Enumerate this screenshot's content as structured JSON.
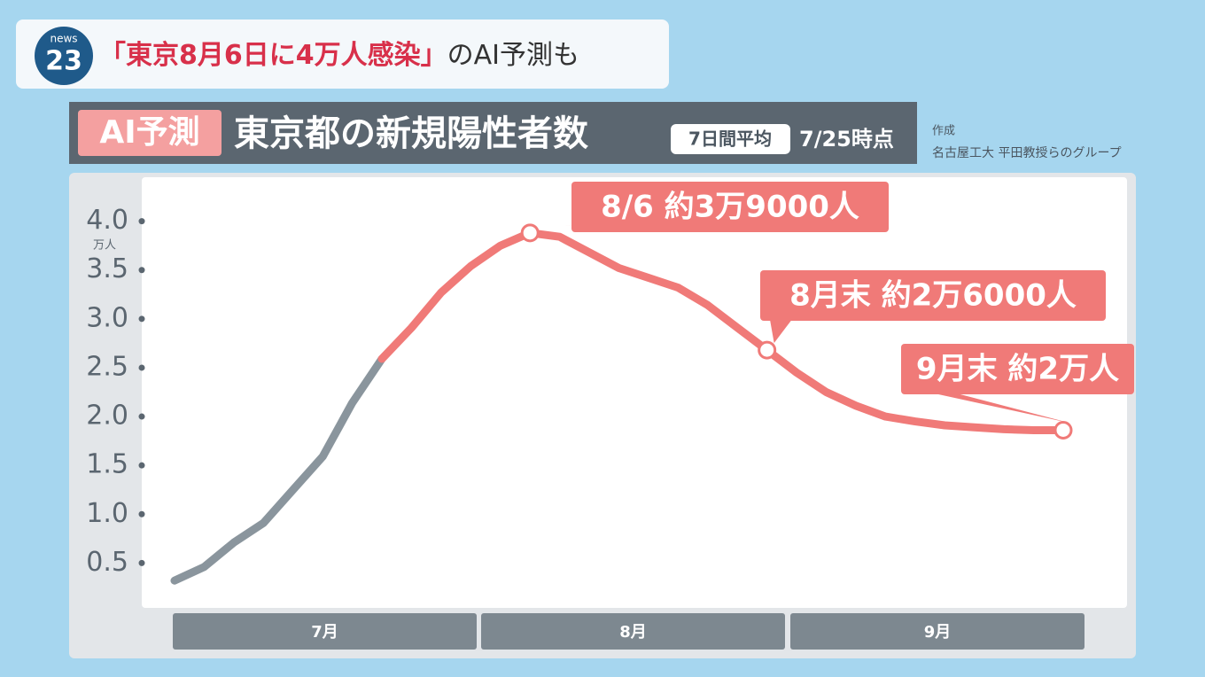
{
  "header": {
    "logo_top": "news",
    "logo_number": "23",
    "title_highlight": "「東京8月6日に4万人感染」",
    "title_rest": "のAI予測も"
  },
  "chart_data": {
    "type": "line",
    "badge": "AI予測",
    "title": "東京都の新規陽性者数",
    "tag": "7日間平均",
    "subtitle": "7/25時点",
    "credit_label": "作成",
    "credit": "名古屋工大 平田教授らのグループ",
    "y_unit": "万人",
    "x_labels": [
      "7月",
      "8月",
      "9月"
    ],
    "ylim": [
      0.05,
      4.45
    ],
    "yticks": [
      0.5,
      {
        "value": 1,
        "label": "1.0"
      },
      1.5,
      {
        "value": 2,
        "label": "2.0"
      },
      2.5,
      {
        "value": 3,
        "label": "3.0"
      },
      3.5,
      {
        "value": 4,
        "label": "4.0"
      }
    ],
    "series": [
      {
        "color": "#8a959d",
        "values": [
          0.32,
          0.46,
          0.71,
          0.91,
          1.25,
          1.59,
          2.14,
          2.59,
          null,
          null,
          null,
          null,
          null,
          null,
          null,
          null,
          null,
          null,
          null,
          null,
          null,
          null,
          null,
          null,
          null,
          null,
          null,
          null,
          null,
          null,
          null
        ]
      },
      {
        "color": "#f07a78",
        "values": [
          null,
          null,
          null,
          null,
          null,
          null,
          null,
          2.59,
          2.91,
          3.27,
          3.54,
          3.75,
          3.88,
          3.84,
          3.68,
          3.52,
          3.42,
          3.32,
          3.14,
          2.91,
          2.68,
          2.45,
          2.25,
          2.11,
          2.0,
          1.95,
          1.91,
          1.89,
          1.87,
          1.86,
          1.86
        ]
      }
    ],
    "annotations": [
      "8/6 約3万9000人",
      "8月末 約2万6000人",
      "9月末 約2万人"
    ]
  }
}
